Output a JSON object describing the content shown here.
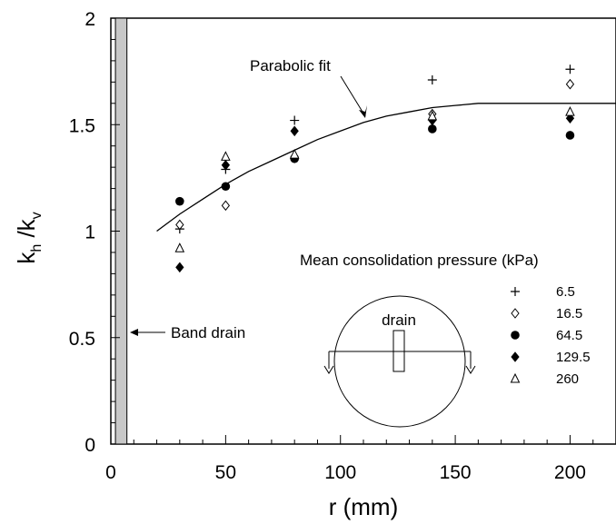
{
  "chart_data": {
    "type": "scatter",
    "xlabel": "r (mm)",
    "ylabel": {
      "main": "k",
      "sub1": "h",
      "mid": " /k",
      "sub2": "v"
    },
    "xlim": [
      0,
      220
    ],
    "ylim": [
      0,
      2
    ],
    "x_ticks": [
      0,
      50,
      100,
      150,
      200
    ],
    "y_ticks": [
      0,
      0.5,
      1,
      1.5,
      2
    ],
    "y_tick_labels": [
      "0",
      "0.5",
      "1",
      "1.5",
      "2"
    ],
    "grid": false,
    "series": [
      {
        "name": "6.5",
        "marker": "plus",
        "points": [
          [
            30,
            1.01
          ],
          [
            50,
            1.29
          ],
          [
            80,
            1.52
          ],
          [
            140,
            1.71
          ],
          [
            200,
            1.76
          ]
        ]
      },
      {
        "name": "16.5",
        "marker": "diamond-open",
        "points": [
          [
            30,
            1.03
          ],
          [
            50,
            1.12
          ],
          [
            80,
            1.35
          ],
          [
            140,
            1.55
          ],
          [
            200,
            1.69
          ]
        ]
      },
      {
        "name": "64.5",
        "marker": "circle-filled",
        "points": [
          [
            30,
            1.14
          ],
          [
            50,
            1.21
          ],
          [
            80,
            1.34
          ],
          [
            140,
            1.48
          ],
          [
            200,
            1.45
          ]
        ]
      },
      {
        "name": "129.5",
        "marker": "diamond-filled",
        "points": [
          [
            30,
            0.83
          ],
          [
            50,
            1.31
          ],
          [
            80,
            1.47
          ],
          [
            140,
            1.52
          ],
          [
            200,
            1.53
          ]
        ]
      },
      {
        "name": "260",
        "marker": "triangle-open",
        "points": [
          [
            30,
            0.92
          ],
          [
            50,
            1.35
          ],
          [
            80,
            1.36
          ],
          [
            140,
            1.54
          ],
          [
            200,
            1.56
          ]
        ]
      }
    ],
    "fit_curve": {
      "label": "Parabolic fit",
      "points": [
        [
          20,
          1.0
        ],
        [
          30,
          1.08
        ],
        [
          40,
          1.15
        ],
        [
          50,
          1.22
        ],
        [
          60,
          1.28
        ],
        [
          70,
          1.33
        ],
        [
          80,
          1.38
        ],
        [
          90,
          1.43
        ],
        [
          100,
          1.47
        ],
        [
          110,
          1.51
        ],
        [
          120,
          1.54
        ],
        [
          130,
          1.56
        ],
        [
          140,
          1.58
        ],
        [
          150,
          1.59
        ],
        [
          160,
          1.6
        ],
        [
          170,
          1.6
        ],
        [
          180,
          1.6
        ],
        [
          190,
          1.6
        ],
        [
          200,
          1.6
        ],
        [
          220,
          1.6
        ]
      ]
    },
    "band_drain": {
      "label": "Band drain",
      "x_range": [
        2,
        7
      ]
    },
    "legend": {
      "title": "Mean consolidation pressure (kPa)",
      "placement": "bottom-right"
    },
    "inset": {
      "label": "drain"
    }
  }
}
